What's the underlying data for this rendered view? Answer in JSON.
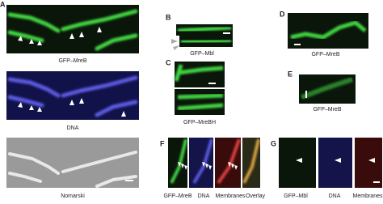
{
  "panels": [
    {
      "letter": "A",
      "labels": [
        "GFP–MreB",
        "DNA",
        "Nomarski"
      ]
    },
    {
      "letter": "B",
      "labels": [
        "GFP–Mbl"
      ]
    },
    {
      "letter": "C",
      "labels": [
        "GFP–MreBH"
      ]
    },
    {
      "letter": "D",
      "labels": [
        "GFP–MreB"
      ]
    },
    {
      "letter": "E",
      "labels": [
        "GFP–MreB"
      ]
    },
    {
      "letter": "F",
      "labels": [
        "GFP–MreB",
        "DNA",
        "Membranes",
        "Overlay"
      ]
    },
    {
      "letter": "G",
      "labels": [
        "GFP–Mbl",
        "DNA",
        "Membranes"
      ]
    }
  ]
}
